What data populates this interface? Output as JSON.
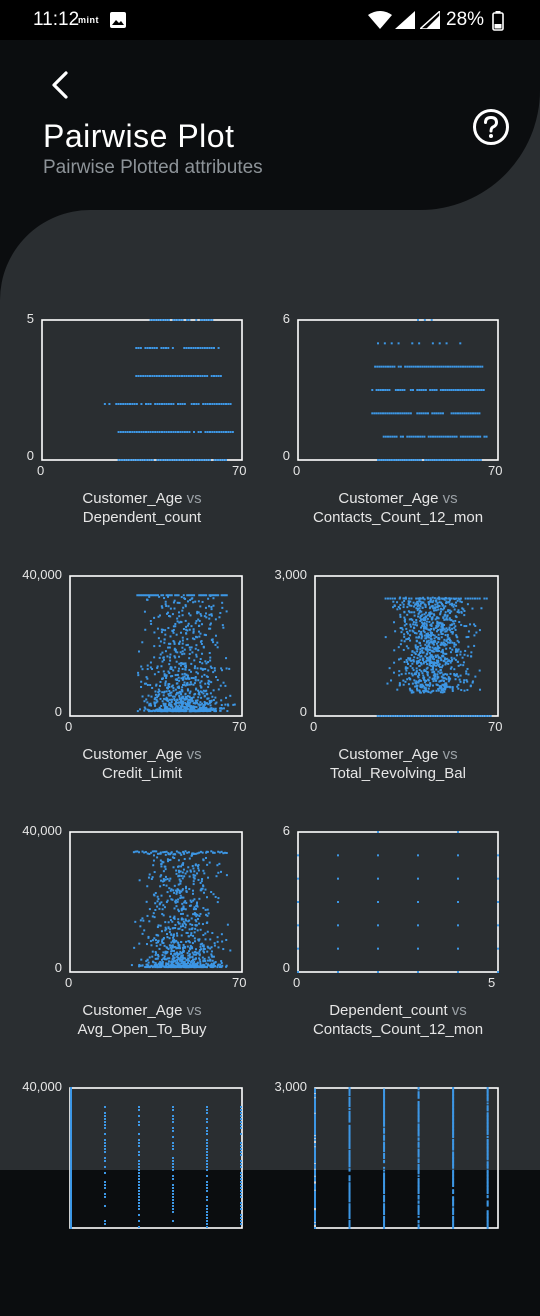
{
  "status": {
    "time": "11:12",
    "carrier": "mint",
    "battery": "28%"
  },
  "header": {
    "title": "Pairwise Plot",
    "subtitle": "Pairwise Plotted attributes"
  },
  "colors": {
    "point": "#3d97e5",
    "background": "#2a2e31",
    "header": "#0b0d0f"
  },
  "icons": {
    "back": "chevron-left-icon",
    "help": "help-circle-icon"
  },
  "chart_data": [
    {
      "type": "scatter",
      "x_label": "Customer_Age",
      "vs": "vs",
      "y_label": "Dependent_count",
      "x_ticks": [
        "0",
        "70"
      ],
      "y_ticks": [
        "5",
        "0"
      ],
      "xlim": [
        0,
        70
      ],
      "ylim": [
        0,
        5
      ]
    },
    {
      "type": "scatter",
      "x_label": "Customer_Age",
      "vs": "vs",
      "y_label": "Contacts_Count_12_mon",
      "x_ticks": [
        "0",
        "70"
      ],
      "y_ticks": [
        "6",
        "0"
      ],
      "xlim": [
        0,
        70
      ],
      "ylim": [
        0,
        6
      ]
    },
    {
      "type": "scatter",
      "x_label": "Customer_Age",
      "vs": "vs",
      "y_label": "Credit_Limit",
      "x_ticks": [
        "0",
        "70"
      ],
      "y_ticks": [
        "40,000",
        "0"
      ],
      "xlim": [
        0,
        70
      ],
      "ylim": [
        0,
        40000
      ]
    },
    {
      "type": "scatter",
      "x_label": "Customer_Age",
      "vs": "vs",
      "y_label": "Total_Revolving_Bal",
      "x_ticks": [
        "0",
        "70"
      ],
      "y_ticks": [
        "3,000",
        "0"
      ],
      "xlim": [
        0,
        70
      ],
      "ylim": [
        0,
        3000
      ]
    },
    {
      "type": "scatter",
      "x_label": "Customer_Age",
      "vs": "vs",
      "y_label": "Avg_Open_To_Buy",
      "x_ticks": [
        "0",
        "70"
      ],
      "y_ticks": [
        "40,000",
        "0"
      ],
      "xlim": [
        0,
        70
      ],
      "ylim": [
        0,
        40000
      ]
    },
    {
      "type": "scatter",
      "x_label": "Dependent_count",
      "vs": "vs",
      "y_label": "Contacts_Count_12_mon",
      "x_ticks": [
        "0",
        "5"
      ],
      "y_ticks": [
        "6",
        "0"
      ],
      "xlim": [
        0,
        5
      ],
      "ylim": [
        0,
        6
      ]
    },
    {
      "type": "scatter",
      "y_ticks": [
        "40,000"
      ],
      "ylim": [
        0,
        40000
      ]
    },
    {
      "type": "scatter",
      "y_ticks": [
        "3,000"
      ],
      "ylim": [
        0,
        3000
      ]
    }
  ]
}
